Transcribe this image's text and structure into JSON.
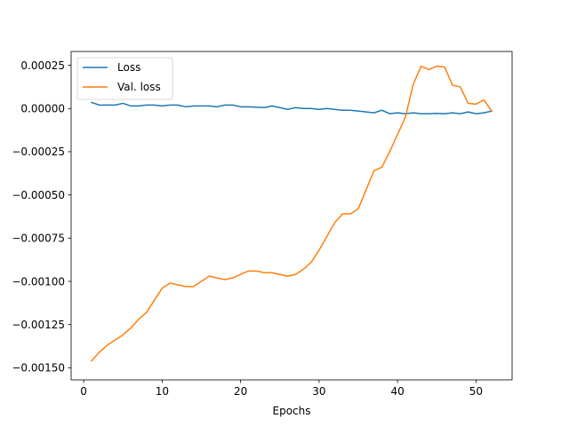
{
  "chart_data": {
    "type": "line",
    "title": "",
    "xlabel": "Epochs",
    "ylabel": "",
    "xlim": [
      -1.6,
      54.6
    ],
    "ylim": [
      -0.00157,
      0.00033
    ],
    "xticks": [
      0,
      10,
      20,
      30,
      40,
      50
    ],
    "xtick_labels": [
      "0",
      "10",
      "20",
      "30",
      "40",
      "50"
    ],
    "yticks": [
      0.00025,
      0.0,
      -0.00025,
      -0.0005,
      -0.00075,
      -0.001,
      -0.00125,
      -0.0015
    ],
    "ytick_labels": [
      "0.00025",
      "0.00000",
      "−0.00025",
      "−0.00050",
      "−0.00075",
      "−0.00100",
      "−0.00125",
      "−0.00150"
    ],
    "grid": false,
    "legend": "top-left",
    "series": [
      {
        "name": "Loss",
        "color": "#1f77b4",
        "x": [
          1,
          2,
          3,
          4,
          5,
          6,
          7,
          8,
          9,
          10,
          11,
          12,
          13,
          14,
          15,
          16,
          17,
          18,
          19,
          20,
          21,
          22,
          23,
          24,
          25,
          26,
          27,
          28,
          29,
          30,
          31,
          32,
          33,
          34,
          35,
          36,
          37,
          38,
          39,
          40,
          41,
          42,
          43,
          44,
          45,
          46,
          47,
          48,
          49,
          50,
          51,
          52
        ],
        "values": [
          3.5e-05,
          2e-05,
          2e-05,
          2e-05,
          3e-05,
          1.5e-05,
          1.5e-05,
          2e-05,
          2e-05,
          1.5e-05,
          2e-05,
          2e-05,
          1e-05,
          1.5e-05,
          1.5e-05,
          1.5e-05,
          1e-05,
          2e-05,
          2e-05,
          1e-05,
          1e-05,
          8e-06,
          5e-06,
          1.5e-05,
          5e-06,
          -5e-06,
          5e-06,
          0.0,
          0.0,
          -5e-06,
          0.0,
          -5e-06,
          -1e-05,
          -1e-05,
          -1.5e-05,
          -2e-05,
          -2.5e-05,
          -1e-05,
          -3e-05,
          -2.5e-05,
          -3e-05,
          -2.5e-05,
          -3e-05,
          -3e-05,
          -2.8e-05,
          -3e-05,
          -2.5e-05,
          -3e-05,
          -2e-05,
          -3e-05,
          -2.5e-05,
          -1.5e-05
        ]
      },
      {
        "name": "Val. loss",
        "color": "#ff7f0e",
        "x": [
          1,
          2,
          3,
          4,
          5,
          6,
          7,
          8,
          9,
          10,
          11,
          12,
          13,
          14,
          15,
          16,
          17,
          18,
          19,
          20,
          21,
          22,
          23,
          24,
          25,
          26,
          27,
          28,
          29,
          30,
          31,
          32,
          33,
          34,
          35,
          36,
          37,
          38,
          39,
          40,
          41,
          42,
          43,
          44,
          45,
          46,
          47,
          48,
          49,
          50,
          51,
          52
        ],
        "values": [
          -0.00146,
          -0.00141,
          -0.00137,
          -0.00134,
          -0.00131,
          -0.00127,
          -0.00122,
          -0.00118,
          -0.00111,
          -0.00104,
          -0.00101,
          -0.00102,
          -0.00103,
          -0.00103,
          -0.001,
          -0.00097,
          -0.00098,
          -0.00099,
          -0.00098,
          -0.00096,
          -0.00094,
          -0.00094,
          -0.00095,
          -0.00095,
          -0.00096,
          -0.00097,
          -0.00096,
          -0.00093,
          -0.00089,
          -0.00082,
          -0.00074,
          -0.00066,
          -0.00061,
          -0.00061,
          -0.00058,
          -0.00047,
          -0.00036,
          -0.00034,
          -0.00025,
          -0.00015,
          -5e-05,
          0.00014,
          0.000245,
          0.000225,
          0.000245,
          0.00024,
          0.000135,
          0.000125,
          3e-05,
          2.5e-05,
          5e-05,
          -1.5e-05
        ]
      }
    ]
  }
}
